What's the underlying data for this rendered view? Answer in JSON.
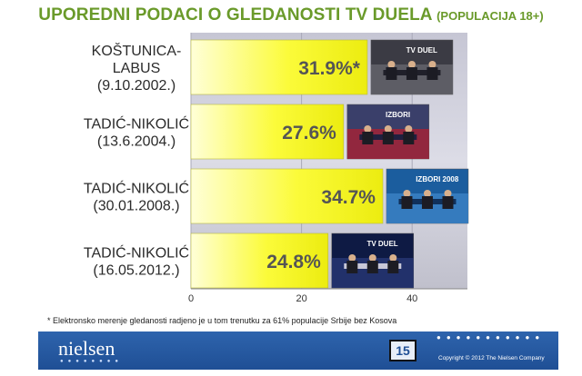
{
  "title": {
    "main": "UPOREDNI PODACI O GLEDANOSTI TV DUELA",
    "sub": "(POPULACIJA 18+)"
  },
  "chart_data": {
    "type": "bar",
    "orientation": "horizontal",
    "categories": [
      [
        "KOŠTUNICA-",
        "LABUS",
        "(9.10.2002.)"
      ],
      [
        "TADIĆ-NIKOLIĆ",
        "(13.6.2004.)"
      ],
      [
        "TADIĆ-NIKOLIĆ",
        "(30.01.2008.)"
      ],
      [
        "TADIĆ-NIKOLIĆ",
        "(16.05.2012.)"
      ]
    ],
    "values": [
      31.9,
      27.6,
      34.7,
      24.8
    ],
    "data_labels": [
      "31.9%*",
      "27.6%",
      "34.7%",
      "24.8%"
    ],
    "xlim": [
      0,
      50
    ],
    "xticks": [
      "0",
      "20",
      "40"
    ],
    "grid": "vertical",
    "bar_color": "#fbfb3a",
    "label_color": "#555555",
    "thumbnail_texts": [
      "TV DUEL",
      "IZBORI",
      "IZBORI 2008",
      "TV DUEL"
    ]
  },
  "footnote": "* Elektronsko merenje gledanosti radjeno je u tom trenutku za 61% populacije Srbije bez Kosova",
  "footer": {
    "logo": "nielsen",
    "page_number": "15",
    "copyright": "Copyright © 2012 The Nielsen Company",
    "bg_color": "#2058a3"
  }
}
